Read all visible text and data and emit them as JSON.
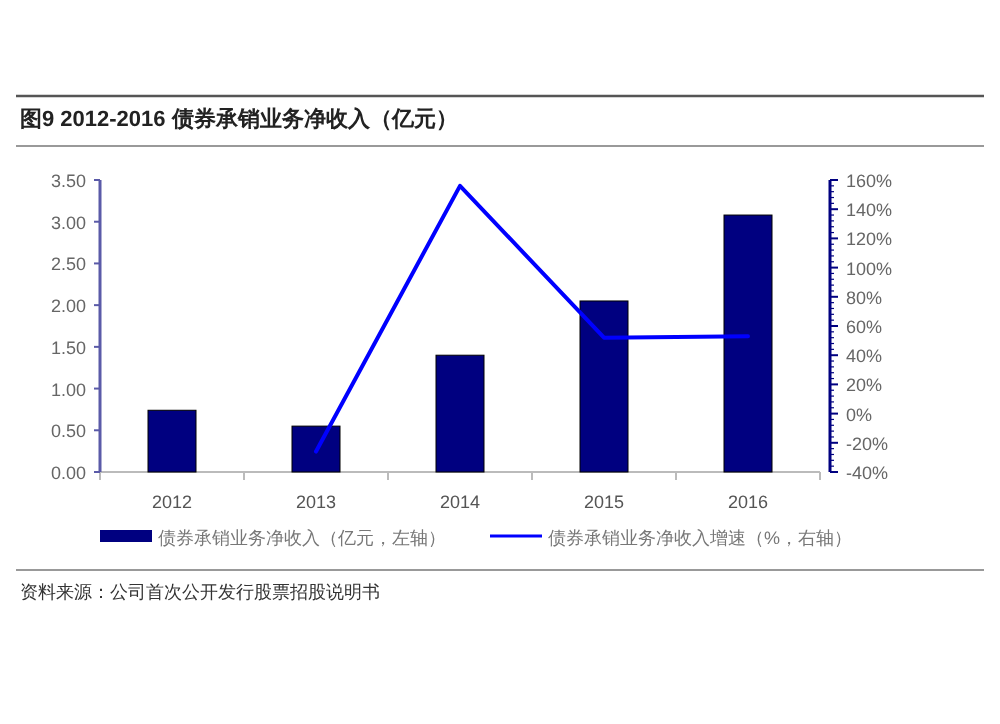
{
  "chart_data": {
    "type": "bar",
    "title": "图9  2012-2016 债券承销业务净收入（亿元）",
    "categories": [
      "2012",
      "2013",
      "2014",
      "2015",
      "2016"
    ],
    "series": [
      {
        "name": "债券承销业务净收入（亿元，左轴）",
        "color": "#000080",
        "values": [
          0.74,
          0.55,
          1.4,
          2.05,
          3.08
        ]
      },
      {
        "name": "债券承销业务净收入增速（%，右轴）",
        "type": "line",
        "axis": "y2",
        "color": "#0000ff",
        "values": [
          null,
          -26,
          156,
          52,
          53
        ]
      }
    ],
    "ylim": [
      0,
      3.5
    ],
    "yticks": [
      {
        "value": 0,
        "label": "0.00"
      },
      {
        "value": 0.5,
        "label": "0.50"
      },
      {
        "value": 1,
        "label": "1.00"
      },
      {
        "value": 1.5,
        "label": "1.50"
      },
      {
        "value": 2,
        "label": "2.00"
      },
      {
        "value": 2.5,
        "label": "2.50"
      },
      {
        "value": 3,
        "label": "3.00"
      },
      {
        "value": 3.5,
        "label": "3.50"
      }
    ],
    "y2lim": [
      -40,
      160
    ],
    "y2ticks": [
      {
        "value": -40,
        "label": "-40%"
      },
      {
        "value": -20,
        "label": "-20%"
      },
      {
        "value": 0,
        "label": "0%"
      },
      {
        "value": 20,
        "label": "20%"
      },
      {
        "value": 40,
        "label": "40%"
      },
      {
        "value": 60,
        "label": "60%"
      },
      {
        "value": 80,
        "label": "80%"
      },
      {
        "value": 100,
        "label": "100%"
      },
      {
        "value": 120,
        "label": "120%"
      },
      {
        "value": 140,
        "label": "140%"
      },
      {
        "value": 160,
        "label": "160%"
      }
    ],
    "legend": "bottom",
    "annotations": [
      "资料来源：公司首次公开发行股票招股说明书"
    ]
  }
}
